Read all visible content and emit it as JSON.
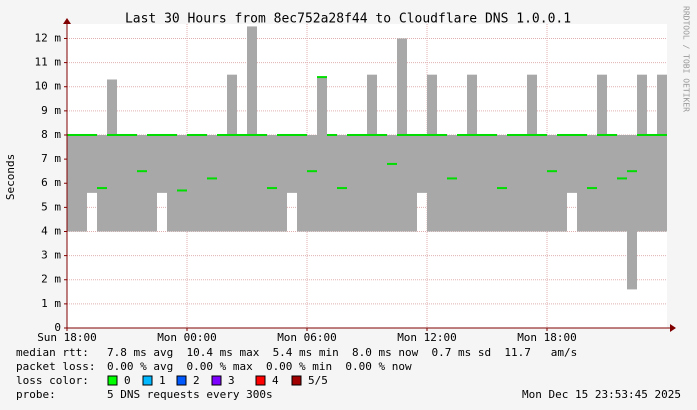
{
  "chart_data": {
    "type": "smokeping",
    "title": "Last 30 Hours from 8ec752a28f44 to Cloudflare DNS 1.0.0.1",
    "y_label": "Seconds",
    "side_label": "RRDTOOL / TOBI OETIKER",
    "x": [
      0,
      0.5,
      1,
      1.5,
      2,
      2.5,
      3,
      3.5,
      4,
      4.5,
      5,
      5.5,
      6,
      6.5,
      7,
      7.5,
      8,
      8.5,
      9,
      9.5,
      10,
      10.5,
      11,
      11.5,
      12,
      12.5,
      13,
      13.5,
      14,
      14.5,
      15,
      15.5,
      16,
      16.5,
      17,
      17.5,
      18,
      18.5,
      19,
      19.5,
      20,
      20.5,
      21,
      21.5,
      22,
      22.5,
      23,
      23.5,
      24,
      24.5,
      25,
      25.5,
      26,
      26.5,
      27,
      27.5,
      28,
      28.5,
      29,
      29.5
    ],
    "median_values": [
      0.008,
      0.008,
      0.008,
      0.0058,
      0.008,
      0.008,
      0.008,
      0.0065,
      0.008,
      0.008,
      0.008,
      0.0057,
      0.008,
      0.008,
      0.0062,
      0.008,
      0.008,
      0.008,
      0.008,
      0.008,
      0.0058,
      0.008,
      0.008,
      0.008,
      0.0065,
      0.0104,
      0.008,
      0.0058,
      0.008,
      0.008,
      0.008,
      0.008,
      0.0068,
      0.008,
      0.008,
      0.008,
      0.008,
      0.008,
      0.0062,
      0.008,
      0.008,
      0.008,
      0.008,
      0.0058,
      0.008,
      0.008,
      0.008,
      0.008,
      0.0065,
      0.008,
      0.008,
      0.008,
      0.0058,
      0.008,
      0.008,
      0.0062,
      0.0065,
      0.008,
      0.008,
      0.008
    ],
    "min_values": [
      0.004,
      0.004,
      0.0056,
      0.004,
      0.004,
      0.004,
      0.004,
      0.004,
      0.004,
      0.0056,
      0.004,
      0.004,
      0.004,
      0.004,
      0.004,
      0.004,
      0.004,
      0.004,
      0.004,
      0.004,
      0.004,
      0.004,
      0.0056,
      0.004,
      0.004,
      0.004,
      0.004,
      0.004,
      0.004,
      0.004,
      0.004,
      0.004,
      0.004,
      0.004,
      0.004,
      0.0056,
      0.004,
      0.004,
      0.004,
      0.004,
      0.004,
      0.004,
      0.004,
      0.004,
      0.004,
      0.004,
      0.004,
      0.004,
      0.004,
      0.004,
      0.0056,
      0.004,
      0.004,
      0.004,
      0.004,
      0.004,
      0.0016,
      0.004,
      0.004,
      0.004
    ],
    "max_values": [
      0.008,
      0.008,
      0.008,
      0.008,
      0.0103,
      0.008,
      0.008,
      0.008,
      0.008,
      0.008,
      0.008,
      0.008,
      0.008,
      0.008,
      0.008,
      0.008,
      0.0105,
      0.008,
      0.0125,
      0.008,
      0.008,
      0.008,
      0.008,
      0.008,
      0.008,
      0.0104,
      0.008,
      0.008,
      0.008,
      0.008,
      0.0105,
      0.008,
      0.008,
      0.012,
      0.008,
      0.008,
      0.0105,
      0.008,
      0.008,
      0.008,
      0.0105,
      0.008,
      0.008,
      0.008,
      0.008,
      0.008,
      0.0105,
      0.008,
      0.008,
      0.008,
      0.008,
      0.008,
      0.008,
      0.0105,
      0.008,
      0.008,
      0.008,
      0.0105,
      0.008,
      0.0105
    ],
    "median_color": "#00dd00",
    "smoke_color": "#a8a8a8",
    "xlim": [
      0,
      30
    ],
    "xticks": [
      {
        "value": 0,
        "label": "Sun 18:00"
      },
      {
        "value": 6,
        "label": "Mon 00:00"
      },
      {
        "value": 12,
        "label": "Mon 06:00"
      },
      {
        "value": 18,
        "label": "Mon 12:00"
      },
      {
        "value": 24,
        "label": "Mon 18:00"
      }
    ],
    "ylim": [
      0,
      0.0126
    ],
    "yticks": [
      0,
      {
        "value": 0.001,
        "label": "1 m"
      },
      {
        "value": 0.002,
        "label": "2 m"
      },
      {
        "value": 0.003,
        "label": "3 m"
      },
      {
        "value": 0.004,
        "label": "4 m"
      },
      {
        "value": 0.005,
        "label": "5 m"
      },
      {
        "value": 0.006,
        "label": "6 m"
      },
      {
        "value": 0.007,
        "label": "7 m"
      },
      {
        "value": 0.008,
        "label": "8 m"
      },
      {
        "value": 0.009,
        "label": "9 m"
      },
      {
        "value": 0.01,
        "label": "10 m"
      },
      {
        "value": 0.011,
        "label": "11 m"
      },
      {
        "value": 0.012,
        "label": "12 m"
      }
    ],
    "grid": true,
    "stats": [
      {
        "label": "median rtt:",
        "text": "7.8 ms avg  10.4 ms max  5.4 ms min  8.0 ms now  0.7 ms sd  11.7   am/s"
      },
      {
        "label": "packet loss:",
        "text": "0.00 % avg  0.00 % max  0.00 % min  0.00 % now"
      }
    ],
    "loss_color_label": "loss color:",
    "loss_colors": [
      {
        "label": "0",
        "color": "#00ff00"
      },
      {
        "label": "1",
        "color": "#00b8ff"
      },
      {
        "label": "2",
        "color": "#0059ff"
      },
      {
        "label": "3",
        "color": "#7e00ff"
      },
      {
        "label": "4",
        "color": "#ff0000"
      },
      {
        "label": "5/5",
        "color": "#a00000"
      }
    ],
    "probe_label": "probe:",
    "probe_text": "5 DNS requests every 300s",
    "timestamp": "Mon Dec 15 23:53:45 2025"
  }
}
